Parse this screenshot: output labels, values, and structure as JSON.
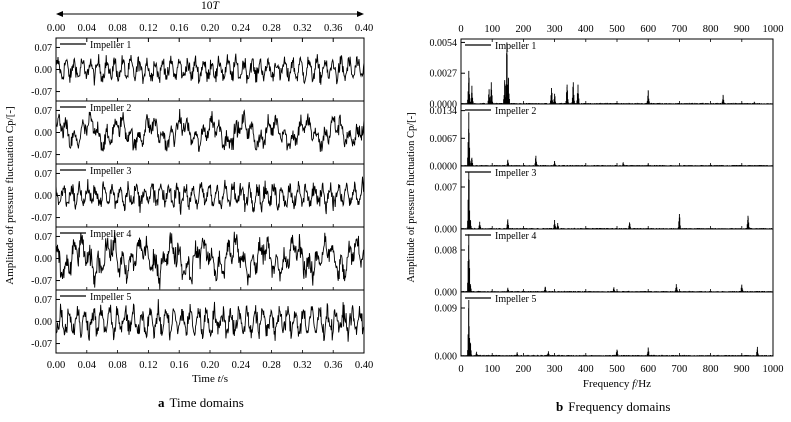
{
  "chart_data": [
    {
      "type": "line",
      "panel_label": "a",
      "caption": "Time domains",
      "xlabel_prefix": "Time ",
      "xlabel_var": "t",
      "xlabel_unit": "/s",
      "ylabel": "Amplitude of pressure fluctuation Cp/[-]",
      "period_label_prefix": "10",
      "period_label_var": "T",
      "xlim": [
        0.0,
        0.4
      ],
      "ylim": [
        -0.1,
        0.1
      ],
      "x_ticks": [
        "0.00",
        "0.04",
        "0.08",
        "0.12",
        "0.16",
        "0.20",
        "0.24",
        "0.28",
        "0.32",
        "0.36",
        "0.40"
      ],
      "x_tick_values": [
        0.0,
        0.04,
        0.08,
        0.12,
        0.16,
        0.2,
        0.24,
        0.28,
        0.32,
        0.36,
        0.4
      ],
      "y_ticks": [
        "0.07",
        "0.00",
        "-0.07"
      ],
      "y_tick_values": [
        0.07,
        0.0,
        -0.07
      ],
      "grid": false,
      "legend_position": "top-left",
      "series": [
        {
          "name": "Impeller 1",
          "amplitude": 0.055,
          "dominant_period_s": 0.0105
        },
        {
          "name": "Impeller 2",
          "amplitude": 0.06,
          "dominant_period_s": 0.04
        },
        {
          "name": "Impeller 3",
          "amplitude": 0.06,
          "dominant_period_s": 0.0105
        },
        {
          "name": "Impeller 4",
          "amplitude": 0.08,
          "dominant_period_s": 0.04
        },
        {
          "name": "Impeller 5",
          "amplitude": 0.07,
          "dominant_period_s": 0.0105
        }
      ]
    },
    {
      "type": "line",
      "panel_label": "b",
      "caption": "Frequency domains",
      "xlabel_prefix": "Frequency ",
      "xlabel_var": "f",
      "xlabel_unit": "/Hz",
      "ylabel": "Amplitude of pressure fluctuation Cp/[-]",
      "xlim": [
        0,
        1000
      ],
      "x_ticks": [
        "0",
        "100",
        "200",
        "300",
        "400",
        "500",
        "600",
        "700",
        "800",
        "900",
        "1000"
      ],
      "x_tick_values": [
        0,
        100,
        200,
        300,
        400,
        500,
        600,
        700,
        800,
        900,
        1000
      ],
      "grid": false,
      "legend_position": "top-left",
      "series": [
        {
          "name": "Impeller 1",
          "ylim": [
            0,
            0.0057
          ],
          "y_ticks": [
            "0.0054",
            "0.0027",
            "0.0000"
          ],
          "y_tick_values": [
            0.0054,
            0.0027,
            0.0
          ],
          "peaks": [
            [
              25,
              0.0029
            ],
            [
              35,
              0.0016
            ],
            [
              90,
              0.0013
            ],
            [
              97,
              0.0019
            ],
            [
              140,
              0.0021
            ],
            [
              147,
              0.0054
            ],
            [
              152,
              0.0023
            ],
            [
              290,
              0.0014
            ],
            [
              300,
              0.0009
            ],
            [
              340,
              0.0017
            ],
            [
              360,
              0.0019
            ],
            [
              375,
              0.0017
            ],
            [
              600,
              0.0012
            ],
            [
              840,
              0.0008
            ],
            [
              940,
              0.0002
            ]
          ]
        },
        {
          "name": "Impeller 2",
          "ylim": [
            0,
            0.015
          ],
          "y_ticks": [
            "0.0134",
            "0.0067",
            "0.0000"
          ],
          "y_tick_values": [
            0.0134,
            0.0067,
            0.0
          ],
          "peaks": [
            [
              25,
              0.013
            ],
            [
              35,
              0.002
            ],
            [
              150,
              0.0015
            ],
            [
              240,
              0.0025
            ],
            [
              300,
              0.0012
            ],
            [
              520,
              0.0009
            ],
            [
              600,
              0.0005
            ],
            [
              800,
              0.0003
            ]
          ]
        },
        {
          "name": "Impeller 3",
          "ylim": [
            0,
            0.0105
          ],
          "y_ticks": [
            "0.007",
            "0.000"
          ],
          "y_tick_values": [
            0.007,
            0.0
          ],
          "peaks": [
            [
              25,
              0.0095
            ],
            [
              30,
              0.0015
            ],
            [
              60,
              0.0012
            ],
            [
              150,
              0.0016
            ],
            [
              300,
              0.0015
            ],
            [
              310,
              0.001
            ],
            [
              540,
              0.0011
            ],
            [
              700,
              0.0025
            ],
            [
              920,
              0.0022
            ]
          ]
        },
        {
          "name": "Impeller 4",
          "ylim": [
            0,
            0.012
          ],
          "y_ticks": [
            "0.008",
            "0.000"
          ],
          "y_tick_values": [
            0.008,
            0.0
          ],
          "peaks": [
            [
              25,
              0.011
            ],
            [
              30,
              0.0015
            ],
            [
              150,
              0.0008
            ],
            [
              270,
              0.001
            ],
            [
              490,
              0.0009
            ],
            [
              690,
              0.0015
            ],
            [
              900,
              0.0014
            ]
          ]
        },
        {
          "name": "Impeller 5",
          "ylim": [
            0,
            0.012
          ],
          "y_ticks": [
            "0.009",
            "0.000"
          ],
          "y_tick_values": [
            0.009,
            0.0
          ],
          "peaks": [
            [
              25,
              0.0105
            ],
            [
              30,
              0.0025
            ],
            [
              50,
              0.0008
            ],
            [
              180,
              0.0007
            ],
            [
              280,
              0.0009
            ],
            [
              500,
              0.0012
            ],
            [
              600,
              0.0016
            ],
            [
              950,
              0.0017
            ]
          ]
        }
      ]
    }
  ]
}
